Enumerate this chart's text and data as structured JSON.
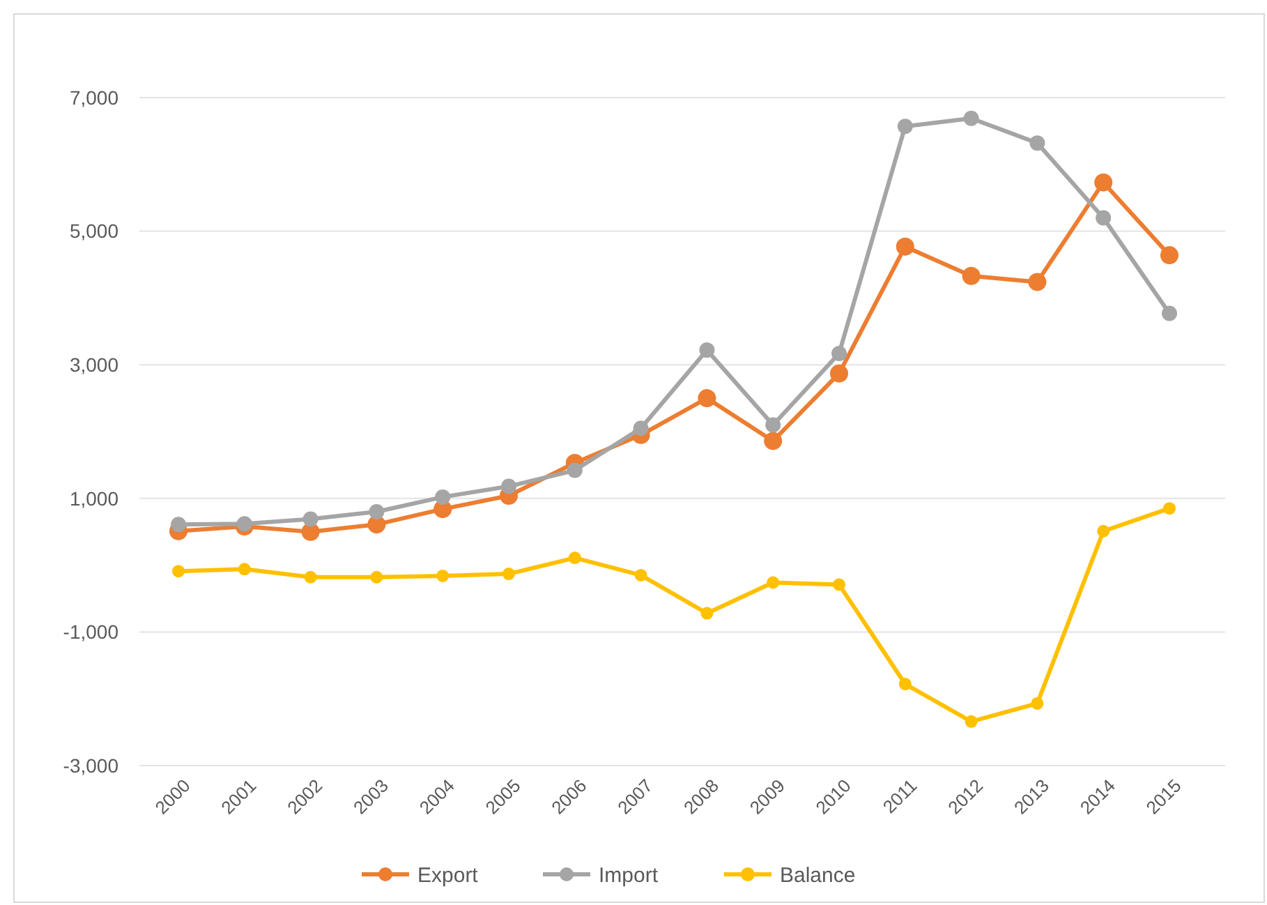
{
  "chart_data": {
    "type": "line",
    "categories": [
      "2000",
      "2001",
      "2002",
      "2003",
      "2004",
      "2005",
      "2006",
      "2007",
      "2008",
      "2009",
      "2010",
      "2011",
      "2012",
      "2013",
      "2014",
      "2015"
    ],
    "series": [
      {
        "name": "Export",
        "color": "#ed7d31",
        "values": [
          510,
          580,
          500,
          610,
          840,
          1040,
          1530,
          1950,
          2500,
          1860,
          2870,
          4770,
          4330,
          4240,
          5730,
          4640
        ]
      },
      {
        "name": "Import",
        "color": "#a5a5a5",
        "values": [
          610,
          620,
          690,
          800,
          1020,
          1180,
          1420,
          2050,
          3220,
          2100,
          3170,
          6570,
          6690,
          6320,
          5200,
          3770
        ]
      },
      {
        "name": "Balance",
        "color": "#ffc000",
        "values": [
          -90,
          -60,
          -180,
          -180,
          -160,
          -130,
          110,
          -150,
          -720,
          -260,
          -290,
          -1780,
          -2340,
          -2070,
          510,
          850
        ]
      }
    ],
    "ylim": [
      -3000,
      7000
    ],
    "yticks": [
      {
        "value": -3000,
        "label": "-3,000"
      },
      {
        "value": -1000,
        "label": "-1,000"
      },
      {
        "value": 1000,
        "label": "1,000"
      },
      {
        "value": 3000,
        "label": "3,000"
      },
      {
        "value": 5000,
        "label": "5,000"
      },
      {
        "value": 7000,
        "label": "7,000"
      }
    ],
    "grid": "y",
    "legend": "bottom",
    "marker": "circle",
    "line_style": "solid"
  }
}
